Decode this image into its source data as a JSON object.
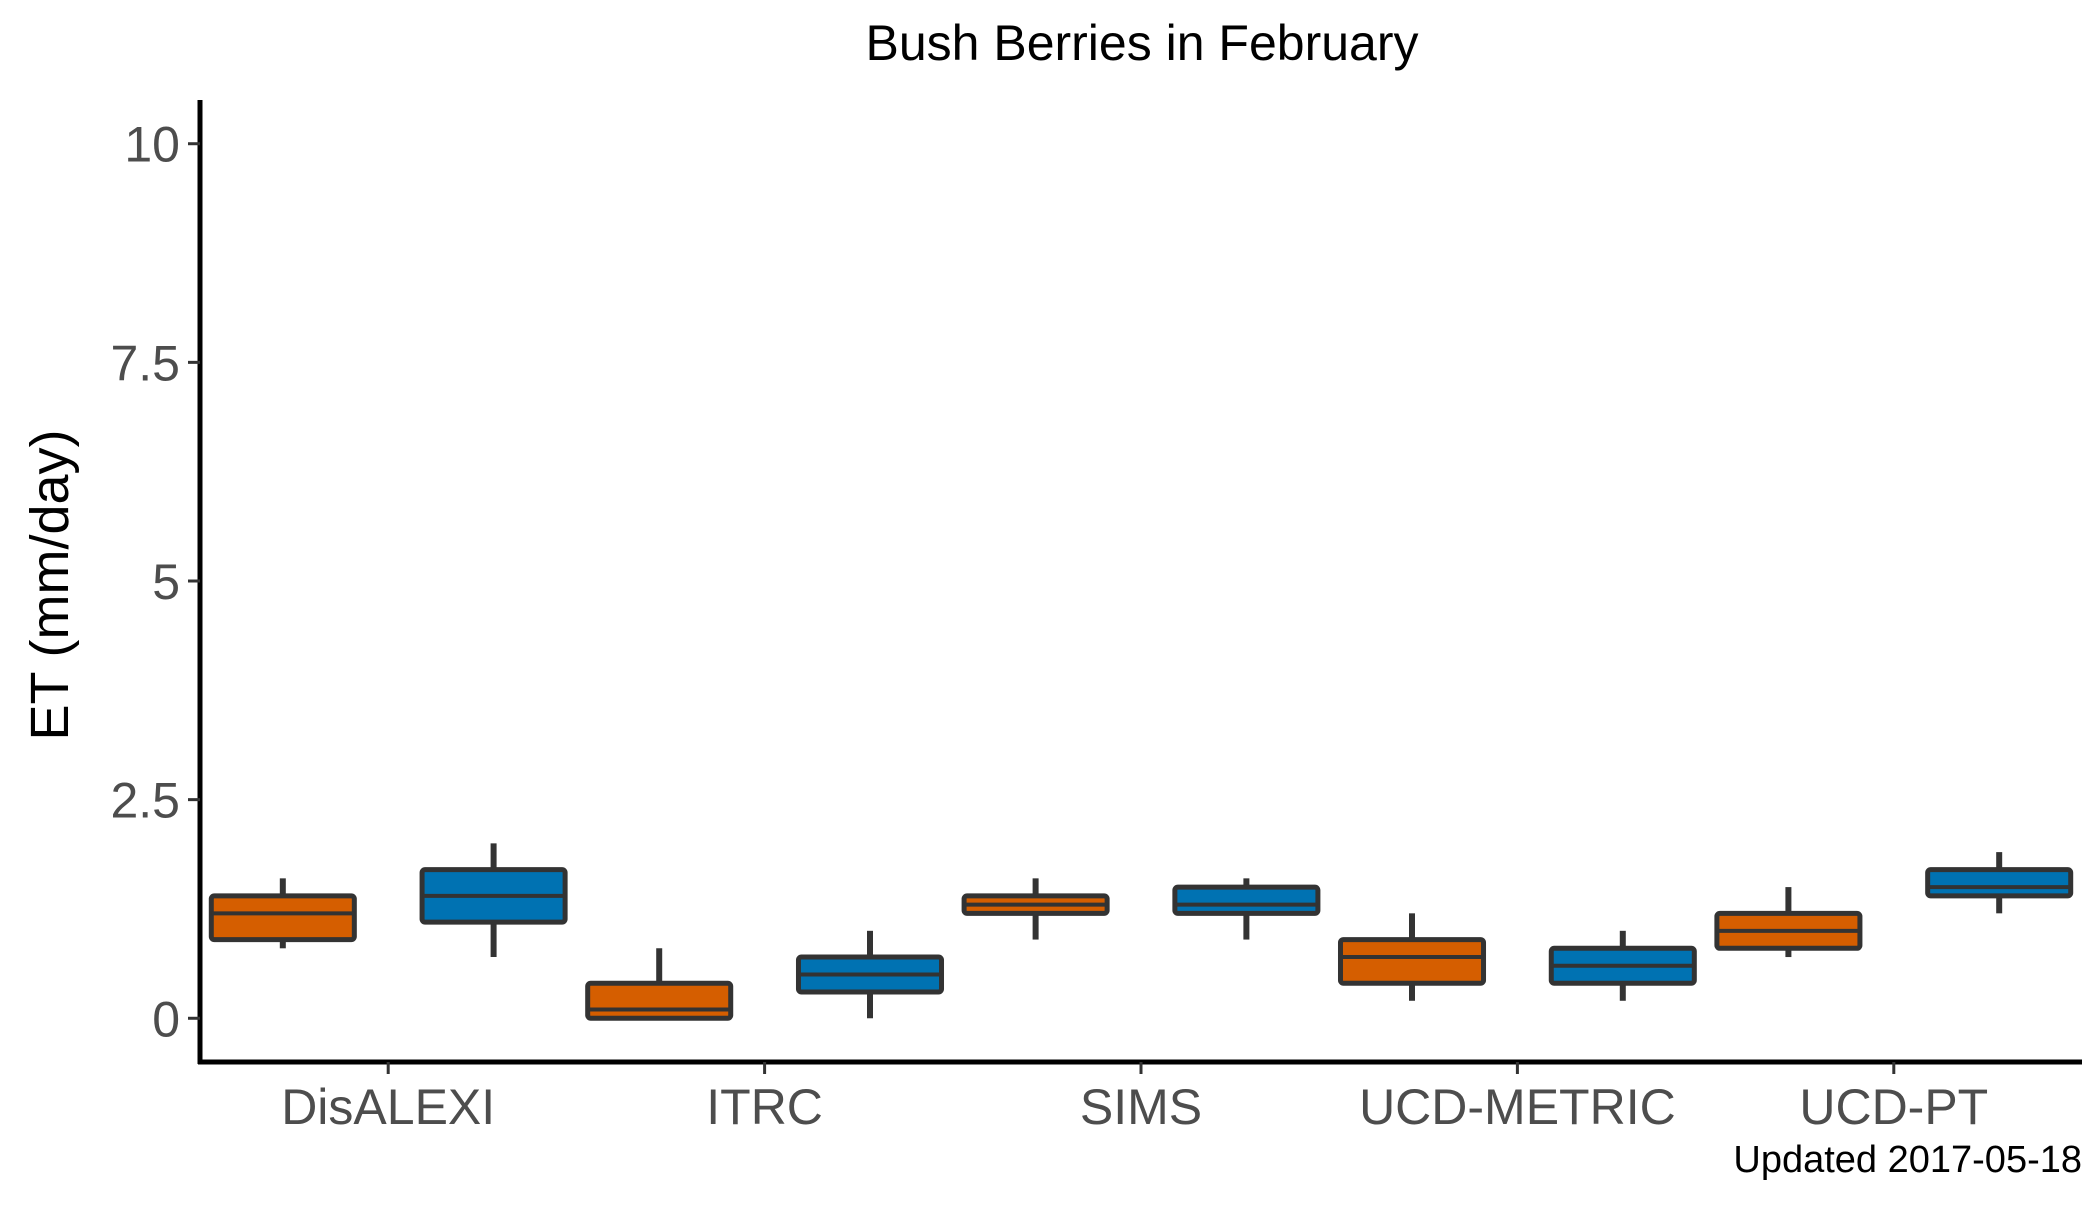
{
  "chart_data": {
    "type": "boxplot",
    "title": "Bush Berries in February",
    "xlabel": "",
    "ylabel": "ET (mm/day)",
    "ylim": [
      -0.5,
      10.5
    ],
    "yticks": [
      {
        "value": 0,
        "label": "0"
      },
      {
        "value": 2.5,
        "label": "2.5"
      },
      {
        "value": 5,
        "label": "5"
      },
      {
        "value": 7.5,
        "label": "7.5"
      },
      {
        "value": 10,
        "label": "10"
      }
    ],
    "categories": [
      "DisALEXI",
      "ITRC",
      "SIMS",
      "UCD-METRIC",
      "UCD-PT"
    ],
    "series": [
      {
        "color": "#D55E00",
        "boxes": [
          {
            "min": 0.8,
            "q1": 0.9,
            "median": 1.2,
            "q3": 1.4,
            "max": 1.6
          },
          {
            "min": 0.0,
            "q1": 0.0,
            "median": 0.1,
            "q3": 0.4,
            "max": 0.8
          },
          {
            "min": 0.9,
            "q1": 1.2,
            "median": 1.3,
            "q3": 1.4,
            "max": 1.6
          },
          {
            "min": 0.2,
            "q1": 0.4,
            "median": 0.7,
            "q3": 0.9,
            "max": 1.2
          },
          {
            "min": 0.7,
            "q1": 0.8,
            "median": 1.0,
            "q3": 1.2,
            "max": 1.5
          }
        ]
      },
      {
        "color": "#0072B2",
        "boxes": [
          {
            "min": 0.7,
            "q1": 1.1,
            "median": 1.4,
            "q3": 1.7,
            "max": 2.0
          },
          {
            "min": 0.0,
            "q1": 0.3,
            "median": 0.5,
            "q3": 0.7,
            "max": 1.0
          },
          {
            "min": 0.9,
            "q1": 1.2,
            "median": 1.3,
            "q3": 1.5,
            "max": 1.6
          },
          {
            "min": 0.2,
            "q1": 0.4,
            "median": 0.6,
            "q3": 0.8,
            "max": 1.0
          },
          {
            "min": 1.2,
            "q1": 1.4,
            "median": 1.5,
            "q3": 1.7,
            "max": 1.9
          }
        ]
      }
    ],
    "grid": false,
    "legend": "none",
    "footnote": "Updated  2017-05-18"
  }
}
